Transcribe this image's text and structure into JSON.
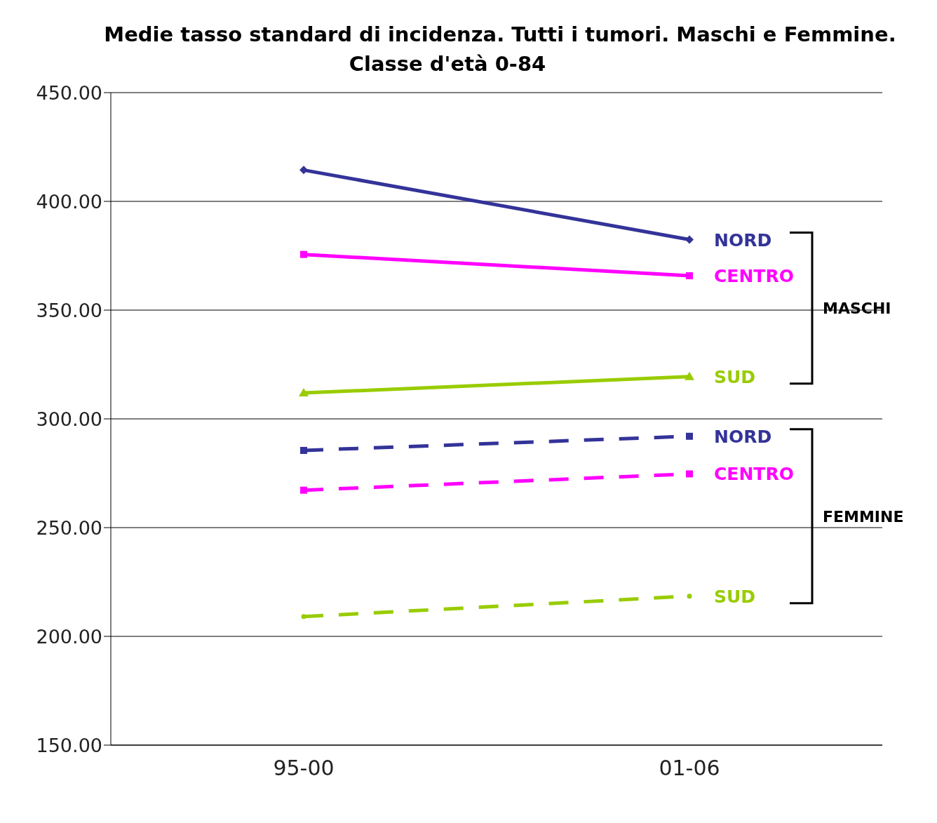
{
  "chart_data": {
    "type": "line",
    "title": "Medie tasso standard di incidenza. Tutti i tumori. Maschi e Femmine.",
    "subtitle": "Classe d'età 0-84",
    "categories": [
      "95-00",
      "01-06"
    ],
    "series": [
      {
        "name": "NORD",
        "color": "#333399",
        "values": [
          414.4,
          382.4
        ],
        "marker": "diamond",
        "line_style": "solid"
      },
      {
        "name": "CENTRO",
        "color": "#ff00ff",
        "values": [
          375.6,
          365.8
        ],
        "marker": "square",
        "line_style": "solid"
      },
      {
        "name": "SUD",
        "color": "#99cc00",
        "values": [
          311.9,
          319.4
        ],
        "marker": "triangle",
        "line_style": "solid"
      },
      {
        "name": "NORD",
        "color": "#333399",
        "values": [
          285.5,
          292.0
        ],
        "marker": "square",
        "line_style": "dashed"
      },
      {
        "name": "CENTRO",
        "color": "#ff00ff",
        "values": [
          267.2,
          274.7
        ],
        "marker": "square",
        "line_style": "dashed"
      },
      {
        "name": "SUD",
        "color": "#99cc00",
        "values": [
          209.1,
          218.5
        ],
        "marker": "circle",
        "line_style": "dashed"
      }
    ],
    "annotations": [
      "MASCHI",
      "FEMMINE"
    ],
    "ylim": [
      150,
      450
    ],
    "yticks": [
      {
        "value": 150,
        "label": "150.00"
      },
      {
        "value": 200,
        "label": "200.00"
      },
      {
        "value": 250,
        "label": "250.00"
      },
      {
        "value": 300,
        "label": "300.00"
      },
      {
        "value": 350,
        "label": "350.00"
      },
      {
        "value": 400,
        "label": "400.00"
      },
      {
        "value": 450,
        "label": "450.00"
      }
    ],
    "grid": "y"
  }
}
